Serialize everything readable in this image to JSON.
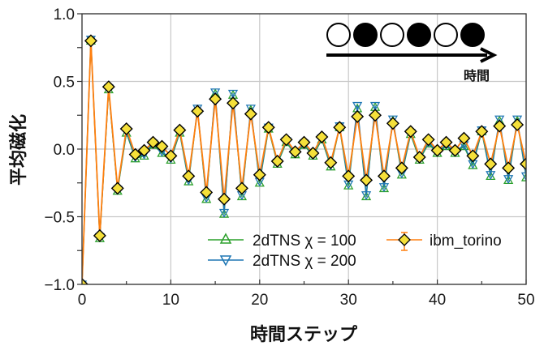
{
  "chart_data": {
    "type": "line",
    "title": "",
    "xlabel": "時間ステップ",
    "ylabel": "平均磁化",
    "xlim": [
      0,
      50
    ],
    "ylim": [
      -1.0,
      1.0
    ],
    "xticks": [
      0,
      10,
      20,
      30,
      40,
      50
    ],
    "xtick_labels": [
      "0",
      "10",
      "20",
      "30",
      "40",
      "50"
    ],
    "yticks": [
      -1.0,
      -0.5,
      0.0,
      0.5,
      1.0
    ],
    "ytick_labels": [
      "-1.0",
      "-0.5",
      "0.0",
      "0.5",
      "1.0"
    ],
    "grid": true,
    "legend_position": "lower right",
    "x": [
      0,
      1,
      2,
      3,
      4,
      5,
      6,
      7,
      8,
      9,
      10,
      11,
      12,
      13,
      14,
      15,
      16,
      17,
      18,
      19,
      20,
      21,
      22,
      23,
      24,
      25,
      26,
      27,
      28,
      29,
      30,
      31,
      32,
      33,
      34,
      35,
      36,
      37,
      38,
      39,
      40,
      41,
      42,
      43,
      44,
      45,
      46,
      47,
      48,
      49,
      50
    ],
    "series": [
      {
        "name": "2dTNS χ = 100",
        "color": "#2ca02c",
        "marker": "triangle-up",
        "values": [
          -1.0,
          0.8,
          -0.66,
          0.44,
          -0.31,
          0.12,
          -0.07,
          -0.05,
          0.03,
          -0.03,
          -0.08,
          0.12,
          -0.24,
          0.29,
          -0.37,
          0.41,
          -0.48,
          0.4,
          -0.35,
          0.29,
          -0.25,
          0.15,
          -0.11,
          0.05,
          -0.04,
          0.03,
          -0.05,
          0.07,
          -0.13,
          0.16,
          -0.27,
          0.3,
          -0.35,
          0.31,
          -0.29,
          0.21,
          -0.19,
          0.11,
          -0.08,
          0.04,
          -0.03,
          0.02,
          -0.03,
          0.02,
          -0.12,
          0.13,
          -0.2,
          0.21,
          -0.23,
          0.21,
          -0.21
        ]
      },
      {
        "name": "2dTNS χ = 200",
        "color": "#1f77b4",
        "marker": "triangle-down",
        "values": [
          -1.0,
          0.81,
          -0.65,
          0.45,
          -0.3,
          0.13,
          -0.06,
          -0.04,
          0.04,
          -0.02,
          -0.07,
          0.13,
          -0.23,
          0.3,
          -0.36,
          0.42,
          -0.47,
          0.41,
          -0.34,
          0.3,
          -0.24,
          0.16,
          -0.1,
          0.06,
          -0.03,
          0.04,
          -0.04,
          0.08,
          -0.12,
          0.17,
          -0.26,
          0.32,
          -0.34,
          0.32,
          -0.28,
          0.22,
          -0.18,
          0.12,
          -0.07,
          0.05,
          -0.02,
          0.03,
          -0.02,
          0.03,
          -0.11,
          0.14,
          -0.19,
          0.22,
          -0.22,
          0.22,
          -0.2
        ]
      },
      {
        "name": "ibm_torino",
        "color": "#ff7f0e",
        "marker": "diamond",
        "marker_fill": "#f5e03a",
        "values": [
          -1.0,
          0.8,
          -0.64,
          0.46,
          -0.29,
          0.15,
          -0.04,
          -0.01,
          0.05,
          0.02,
          -0.05,
          0.14,
          -0.2,
          0.28,
          -0.32,
          0.37,
          -0.37,
          0.34,
          -0.29,
          0.26,
          -0.19,
          0.16,
          -0.09,
          0.07,
          -0.02,
          0.05,
          -0.03,
          0.09,
          -0.1,
          0.16,
          -0.2,
          0.24,
          -0.23,
          0.25,
          -0.2,
          0.19,
          -0.14,
          0.13,
          -0.06,
          0.07,
          -0.01,
          0.05,
          -0.01,
          0.08,
          -0.05,
          0.13,
          -0.11,
          0.17,
          -0.14,
          0.18,
          -0.11
        ]
      }
    ],
    "legend": [
      {
        "label": "2dTNS χ = 100",
        "color": "#2ca02c",
        "marker": "triangle-up"
      },
      {
        "label": "2dTNS χ = 200",
        "color": "#1f77b4",
        "marker": "triangle-down"
      },
      {
        "label": "ibm_torino",
        "color": "#ff7f0e",
        "marker": "diamond-errorbar"
      }
    ],
    "annotations": [
      {
        "type": "spin-chain",
        "pattern": [
          "open",
          "filled",
          "open",
          "filled",
          "open",
          "filled"
        ]
      },
      {
        "type": "arrow",
        "label": "時間"
      }
    ]
  },
  "axes": {
    "xlabel": "時間ステップ",
    "ylabel": "平均磁化"
  },
  "inset": {
    "arrow_label": "時間"
  },
  "legend": {
    "tns100": "2dTNS χ = 100",
    "tns200": "2dTNS χ = 200",
    "ibm": "ibm_torino"
  }
}
